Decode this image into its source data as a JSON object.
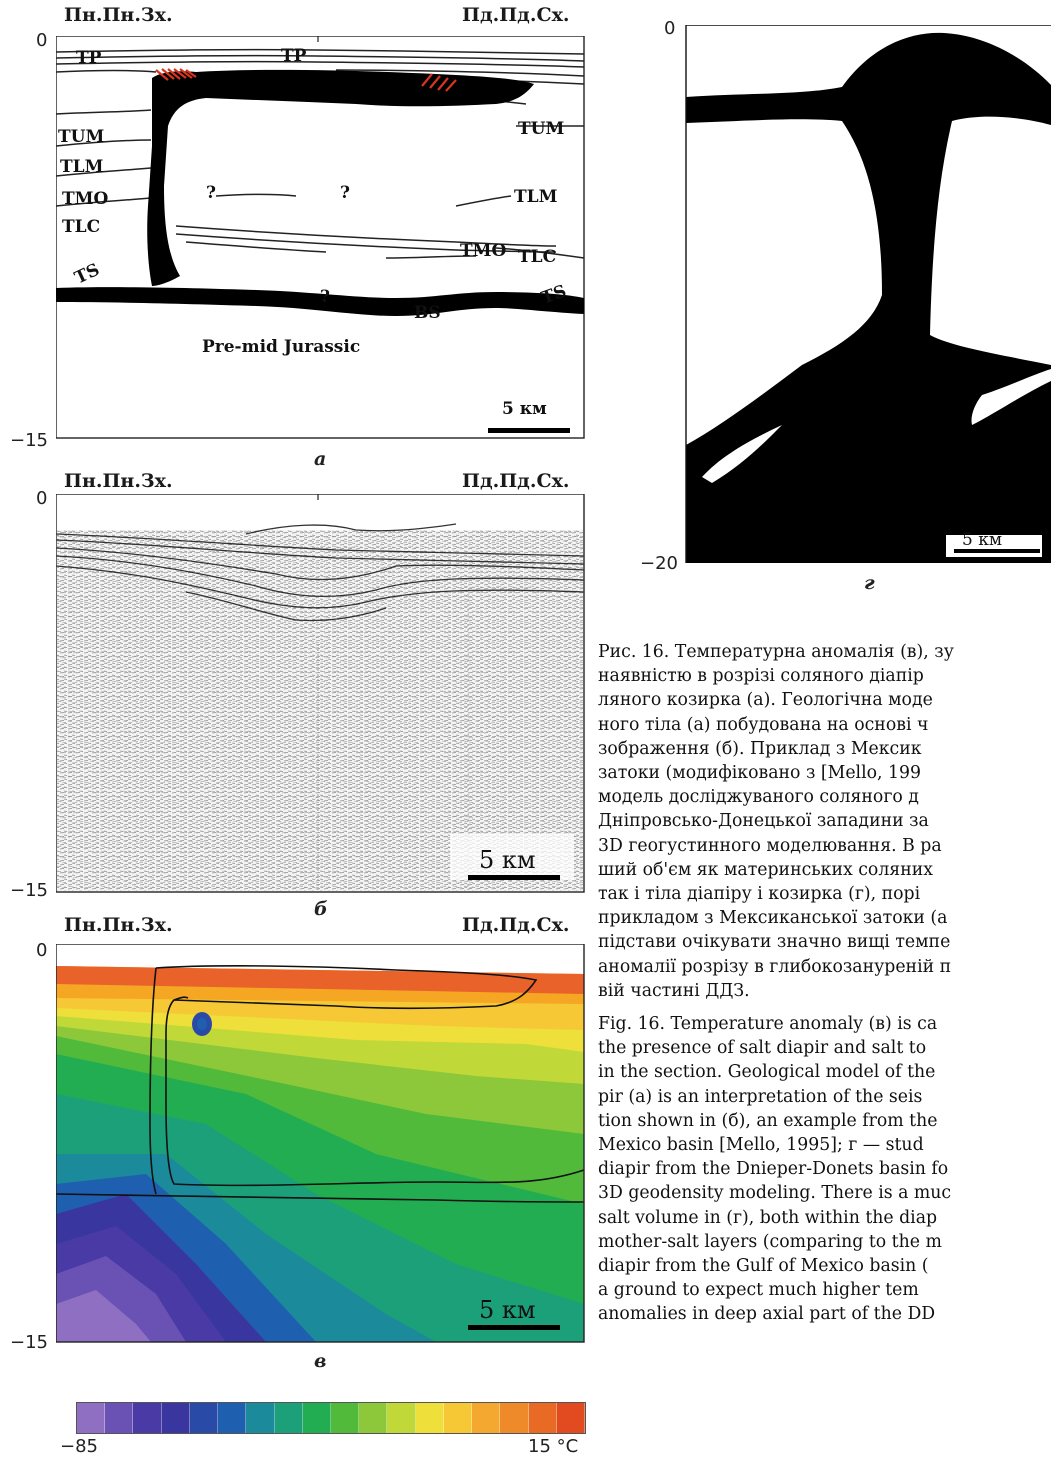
{
  "panel_a": {
    "left_label": "Пн.Пн.Зх.",
    "right_label": "Пд.Пд.Сх.",
    "depth_top": "0",
    "depth_bottom": "−15",
    "letter": "а",
    "layer_labels": [
      "TP",
      "TP",
      "TUM",
      "TUM",
      "TLM",
      "TLM",
      "TMO",
      "TMO",
      "TLC",
      "TLC",
      "TS",
      "TS",
      "BS"
    ],
    "question_marks": [
      "?",
      "?",
      "?"
    ],
    "basement_label": "Pre-mid Jurassic",
    "scale_label": "5 км"
  },
  "panel_b": {
    "left_label": "Пн.Пн.Зх.",
    "right_label": "Пд.Пд.Сх.",
    "depth_top": "0",
    "depth_bottom": "−15",
    "letter": "б",
    "scale_label": "5 км"
  },
  "panel_v": {
    "left_label": "Пн.Пн.Зх.",
    "right_label": "Пд.Пд.Сх.",
    "depth_top": "0",
    "depth_bottom": "−15",
    "letter": "в",
    "scale_label": "5 км",
    "colorbar_min": "−85",
    "colorbar_max": "15 °С",
    "colorbar_colors": [
      "#8f6fc2",
      "#6a52b4",
      "#4a3aa6",
      "#3a36a0",
      "#2a4aa8",
      "#1f5fb0",
      "#1b8a9b",
      "#1ca07a",
      "#22ad52",
      "#52ba3a",
      "#8cc83a",
      "#c0d838",
      "#eedf3a",
      "#f6c835",
      "#f4a830",
      "#ef8a2a",
      "#e86a25",
      "#e24a20"
    ]
  },
  "panel_g": {
    "depth_top": "0",
    "depth_bottom": "−20",
    "letter": "г",
    "scale_label": "5 км"
  },
  "caption_ua": [
    "Рис. 16. Температурна аномалія (в), зу",
    "наявністю в розрізі соляного діапір",
    "ляного козирка (а). Геологічна моде",
    "ного тіла (а) побудована на основі ч",
    "зображення (б). Приклад з Мексик",
    "затоки (модифіковано з [Mello, 199",
    "модель досліджуваного соляного д",
    "Дніпровсько-Донецької западини за",
    "3D геогустинного моделювання. В ра",
    "ший об'єм як материнських соляних",
    "так і тіла діапіру і козирка (г), порі",
    "прикладом з Мексиканської затоки (а",
    "підстави очікувати значно вищі темпе",
    "аномалії розрізу в глибокозануреній п",
    "вій частині ДДЗ."
  ],
  "caption_en": [
    "Fig. 16. Temperature anomaly (в) is ca",
    "the presence of salt diapir and salt to",
    "in the section. Geological model of the",
    "pir (а) is an interpretation of the seis",
    "tion shown in (б), an example from the",
    "Mexico basin [Mello, 1995]; г — stud",
    "diapir from the Dnieper-Donets basin fo",
    "3D geodensity modeling. There is a muc",
    "salt volume in (г), both within the diap",
    "mother-salt layers (comparing to the m",
    "diapir from the Gulf of Mexico basin (",
    "a ground to expect much higher tem",
    "anomalies in deep axial part of the DD"
  ]
}
